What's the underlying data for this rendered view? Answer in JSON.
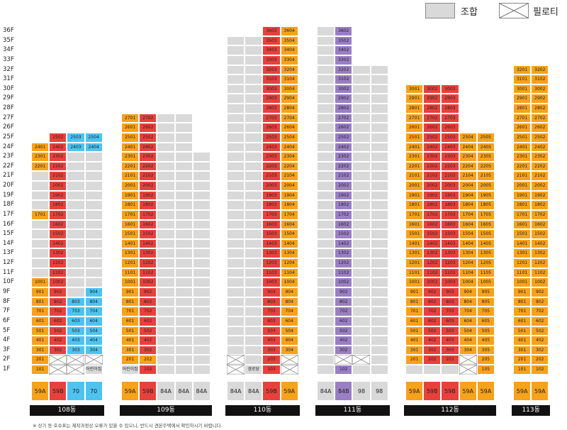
{
  "legend": {
    "union_label": "조합",
    "piloti_label": "필로티"
  },
  "colors": {
    "orange": "#f7a21b",
    "red": "#e8413c",
    "blue": "#4ec3f0",
    "purple": "#9a7fc4",
    "gray": "#d9d9d9",
    "piloti": "#ffffff"
  },
  "floors": [
    "36F",
    "35F",
    "34F",
    "33F",
    "32F",
    "31F",
    "30F",
    "29F",
    "28F",
    "27F",
    "26F",
    "25F",
    "24F",
    "23F",
    "22F",
    "21F",
    "20F",
    "19F",
    "18F",
    "17F",
    "16F",
    "15F",
    "14F",
    "13F",
    "12F",
    "11F",
    "10F",
    "9F",
    "8F",
    "7F",
    "6F",
    "5F",
    "4F",
    "3F",
    "2F",
    "1F"
  ],
  "note": "※ 상기 동·호수표는 제작과정상 오류가 있을 수 있으니, 반드시 견본주택에서 확인하시기 바랍니다.",
  "buildings": [
    {
      "name": "108동",
      "cols": [
        {
          "type": "59A",
          "color": "orange",
          "top": 24,
          "cells": [
            {
              "f": 1,
              "t": "101",
              "c": "orange"
            },
            {
              "f": 2,
              "t": "201",
              "c": "orange"
            }
          ]
        },
        {
          "type": "59B",
          "color": "red",
          "top": 25,
          "cells": [
            {
              "f": 1,
              "c": "piloti"
            },
            {
              "f": 2,
              "c": "piloti"
            }
          ]
        },
        {
          "type": "70",
          "color": "blue",
          "top": 25,
          "cells": [
            {
              "f": 1,
              "c": "piloti"
            },
            {
              "f": 2,
              "c": "piloti"
            }
          ]
        },
        {
          "type": "70",
          "color": "blue",
          "top": 25,
          "cells": [
            {
              "f": 1,
              "t": "어린이집",
              "c": "gray",
              "lbl": true
            },
            {
              "f": 2,
              "c": "piloti"
            }
          ]
        }
      ],
      "extra": [
        {
          "col": 0,
          "fills": [
            [
              3,
              10,
              "orange"
            ],
            [
              17,
              17,
              "orange"
            ],
            [
              22,
              24,
              "orange"
            ]
          ]
        },
        {
          "col": 1,
          "fills": [
            [
              3,
              25,
              "red"
            ]
          ]
        },
        {
          "col": 2,
          "fills": [
            [
              3,
              8,
              "blue"
            ],
            [
              24,
              25,
              "blue"
            ]
          ]
        },
        {
          "col": 3,
          "fills": [
            [
              3,
              9,
              "blue"
            ],
            [
              24,
              25,
              "blue"
            ]
          ]
        }
      ]
    },
    {
      "name": "109동",
      "cols": [
        {
          "type": "59A",
          "color": "orange",
          "top": 27,
          "cells": [
            {
              "f": 1,
              "t": "어린이집",
              "c": "gray",
              "lbl": true
            },
            {
              "f": 2,
              "t": "201",
              "c": "orange"
            }
          ]
        },
        {
          "type": "59B",
          "color": "red",
          "top": 27,
          "cells": [
            {
              "f": 2,
              "t": "202",
              "c": "orange"
            }
          ]
        },
        {
          "type": "84A",
          "color": "gray",
          "top": 27,
          "cells": []
        },
        {
          "type": "84A",
          "color": "gray",
          "top": 27,
          "cells": []
        },
        {
          "type": "84A",
          "color": "gray",
          "top": 23,
          "cells": []
        }
      ],
      "extra": []
    },
    {
      "name": "110동",
      "cols": [
        {
          "type": "84A",
          "color": "gray",
          "top": 35,
          "cells": [
            {
              "f": 1,
              "c": "piloti"
            },
            {
              "f": 2,
              "c": "piloti"
            }
          ]
        },
        {
          "type": "84A",
          "color": "gray",
          "top": 35,
          "cells": [
            {
              "f": 1,
              "t": "경로당",
              "c": "gray",
              "lbl": true
            }
          ]
        },
        {
          "type": "59B",
          "color": "red",
          "top": 36,
          "cells": []
        },
        {
          "type": "59A",
          "color": "orange",
          "top": 36,
          "cells": [
            {
              "f": 1,
              "c": "piloti"
            },
            {
              "f": 2,
              "c": "piloti"
            }
          ]
        }
      ],
      "extra": []
    },
    {
      "name": "111동",
      "cols": [
        {
          "type": "84A",
          "color": "gray",
          "top": 36,
          "cells": []
        },
        {
          "type": "84B",
          "color": "purple",
          "top": 36,
          "cells": [
            {
              "f": 1,
              "t": "102",
              "c": "purple"
            },
            {
              "f": 2,
              "c": "piloti"
            },
            {
              "f": 36,
              "t": "3602",
              "c": "purple"
            }
          ]
        },
        {
          "type": "98",
          "color": "gray",
          "top": 32,
          "cells": [
            {
              "f": 2,
              "c": "piloti"
            }
          ]
        },
        {
          "type": "98",
          "color": "gray",
          "top": 32,
          "cells": []
        }
      ],
      "extra": []
    },
    {
      "name": "112동",
      "cols": [
        {
          "type": "59A",
          "color": "orange",
          "top": 30,
          "cells": [
            {
              "f": 1,
              "c": "gray"
            }
          ]
        },
        {
          "type": "59B",
          "color": "red",
          "top": 30,
          "cells": [
            {
              "f": 1,
              "c": "gray"
            }
          ]
        },
        {
          "type": "59B",
          "color": "red",
          "top": 30,
          "cells": [
            {
              "f": 1,
              "c": "gray"
            }
          ]
        },
        {
          "type": "59A",
          "color": "orange",
          "top": 25,
          "cells": [
            {
              "f": 1,
              "c": "piloti"
            },
            {
              "f": 2,
              "c": "piloti"
            }
          ]
        },
        {
          "type": "59A",
          "color": "orange",
          "top": 25,
          "cells": [
            {
              "f": 1,
              "t": "105",
              "c": "orange"
            },
            {
              "f": 2,
              "t": "205",
              "c": "orange"
            }
          ]
        }
      ],
      "extra": []
    },
    {
      "name": "113동",
      "cols": [
        {
          "type": "59A",
          "color": "orange",
          "top": 32,
          "cells": []
        },
        {
          "type": "59A",
          "color": "orange",
          "top": 32,
          "cells": []
        }
      ],
      "extra": []
    }
  ]
}
